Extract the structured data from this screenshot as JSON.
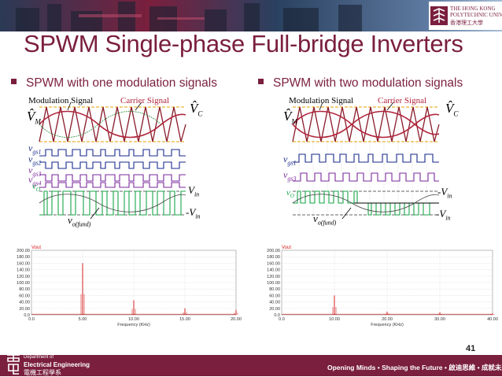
{
  "header": {
    "university_name_line1": "THE HONG KONG",
    "university_name_line2": "POLYTECHNIC UNIVERSITY",
    "university_name_chinese": "香港理工大學"
  },
  "slide": {
    "title": "SPWM Single-phase Full-bridge Inverters",
    "page_number": "41"
  },
  "left_panel": {
    "bullet": "SPWM with one modulation signals",
    "modulation_label": "Modulation Signal",
    "carrier_label": "Carrier Signal",
    "vm_hat": "V̂",
    "vm_sub": "M",
    "vc_hat": "V̂",
    "vc_sub": "C",
    "vgs1": "v",
    "vgs1_sub": "gs1",
    "vgs2": "v",
    "vgs2_sub": "gs2",
    "vgs3": "v",
    "vgs3_sub": "gs3",
    "vgs4": "v",
    "vgs4_sub": "gs4",
    "vo": "v",
    "vo_sub": "O",
    "vin_pos": "V",
    "vin_pos_sub": "in",
    "vin_neg": "-V",
    "vin_neg_sub": "in",
    "vofund": "v",
    "vofund_sub": "o(fund)"
  },
  "right_panel": {
    "bullet": "SPWM with two modulation signals",
    "modulation_label": "Modulation Signal",
    "carrier_label": "Carrier Signal",
    "vm_hat": "V̂",
    "vm_sub": "M",
    "vc_hat": "V̂",
    "vc_sub": "C",
    "vgs1": "v",
    "vgs1_sub": "gs1",
    "vgs3": "v",
    "vgs3_sub": "gs3",
    "vo": "v",
    "vo_sub": "O",
    "vin_pos": "-V",
    "vin_pos_sub": "in",
    "vin_neg": "-V",
    "vin_neg_sub": "in",
    "vofund": "v",
    "vofund_sub": "o(fund)"
  },
  "chart_data": [
    {
      "type": "line",
      "title": "Vout",
      "xlabel": "Frequency (KHz)",
      "ylabel": "",
      "x_ticks": [
        "0.0",
        "5.00",
        "10.00",
        "15.00",
        "20.00"
      ],
      "y_ticks": [
        "0.0",
        "20.00",
        "40.00",
        "60.00",
        "80.00",
        "100.00",
        "120.00",
        "140.00",
        "160.00",
        "180.00",
        "200.00"
      ],
      "xlim": [
        0,
        20
      ],
      "ylim": [
        0,
        200
      ],
      "grid": true,
      "peaks": [
        {
          "x": 5.0,
          "y": 160
        },
        {
          "x": 10.0,
          "y": 45
        },
        {
          "x": 15.0,
          "y": 20
        },
        {
          "x": 20.0,
          "y": 15
        }
      ],
      "color": "#d62020"
    },
    {
      "type": "line",
      "title": "Vout",
      "xlabel": "Frequency (KHz)",
      "ylabel": "",
      "x_ticks": [
        "0.0",
        "10.00",
        "20.00",
        "30.00",
        "40.00"
      ],
      "y_ticks": [
        "0.0",
        "20.00",
        "40.00",
        "60.00",
        "80.00",
        "100.00",
        "120.00",
        "140.00",
        "160.00",
        "180.00",
        "200.00"
      ],
      "xlim": [
        0,
        40
      ],
      "ylim": [
        0,
        200
      ],
      "grid": true,
      "peaks": [
        {
          "x": 10.0,
          "y": 60
        },
        {
          "x": 20.0,
          "y": 10
        },
        {
          "x": 30.0,
          "y": 8
        },
        {
          "x": 40.0,
          "y": 5
        }
      ],
      "color": "#d62020"
    }
  ],
  "footer": {
    "dept_line1": "Department of",
    "dept_line2": "Electrical Engineering",
    "dept_line3": "電機工程學系",
    "slogan": "Opening Minds • Shaping the Future • 啟迪思維 • 成就未來"
  },
  "colors": {
    "brand": "#7a1f3d",
    "modulation": "#b1243b",
    "carrier": "#8a1a2a",
    "vgs_blue": "#1a2a8c",
    "vgs_purple": "#7a2a9c",
    "vo_green": "#1aa64a",
    "peak_red": "#d62020"
  }
}
